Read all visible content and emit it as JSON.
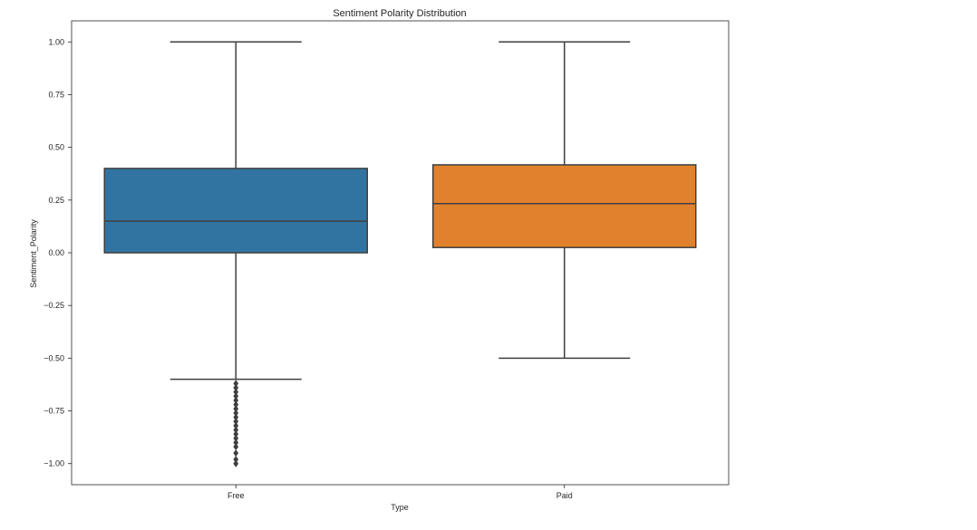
{
  "chart_data": {
    "type": "box",
    "title": "Sentiment Polarity Distribution",
    "xlabel": "Type",
    "ylabel": "Sentiment_Polarity",
    "ylim": [
      -1.1,
      1.1
    ],
    "yticks": [
      1.0,
      0.75,
      0.5,
      0.25,
      0.0,
      -0.25,
      -0.5,
      -0.75,
      -1.0
    ],
    "ytick_labels": [
      "1.00",
      "0.75",
      "0.50",
      "0.25",
      "0.00",
      "−0.25",
      "−0.50",
      "−0.75",
      "−1.00"
    ],
    "categories": [
      "Free",
      "Paid"
    ],
    "grid": false,
    "series": [
      {
        "category": "Free",
        "color": "#3274a1",
        "q1": 0.0,
        "median": 0.15,
        "q3": 0.4,
        "whisker_low": -0.6,
        "whisker_high": 1.0,
        "outliers": [
          -0.62,
          -0.64,
          -0.66,
          -0.68,
          -0.7,
          -0.72,
          -0.74,
          -0.76,
          -0.78,
          -0.8,
          -0.82,
          -0.84,
          -0.86,
          -0.88,
          -0.9,
          -0.92,
          -0.95,
          -0.98,
          -1.0
        ]
      },
      {
        "category": "Paid",
        "color": "#e1812c",
        "q1": 0.025,
        "median": 0.233,
        "q3": 0.417,
        "whisker_low": -0.5,
        "whisker_high": 1.0,
        "outliers": []
      }
    ]
  }
}
